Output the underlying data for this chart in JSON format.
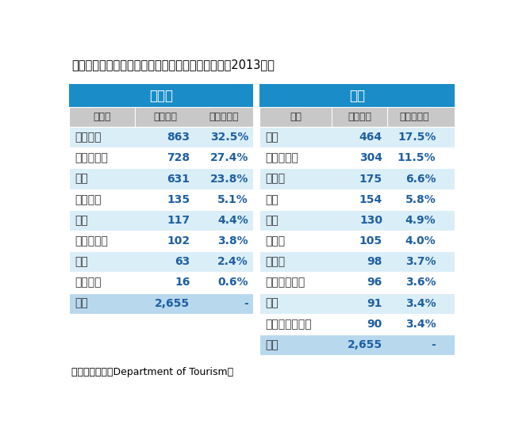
{
  "title": "図表２　タイの観光客到着数の地域別・国別内訳（2013年）",
  "source": "出所：観光局（Department of Tourism）",
  "header_bg": "#1a8dc8",
  "header_text": "#ffffff",
  "subheader_bg": "#c8c8c8",
  "subheader_text": "#333333",
  "row_bg_even": "#daeef8",
  "row_bg_odd": "#ffffff",
  "last_row_bg": "#b8d8ee",
  "data_text_color": "#1e5fa0",
  "name_text_color": "#333333",
  "left_table": {
    "title": "地域別",
    "headers": [
      "地域名",
      "（万人）",
      "（構成比）"
    ],
    "rows": [
      [
        "東アジア",
        "863",
        "32.5%"
      ],
      [
        "東南アジア",
        "728",
        "27.4%"
      ],
      [
        "欧州",
        "631",
        "23.8%"
      ],
      [
        "南アジア",
        "135",
        "5.1%"
      ],
      [
        "米州",
        "117",
        "4.4%"
      ],
      [
        "オセアニア",
        "102",
        "3.8%"
      ],
      [
        "中東",
        "63",
        "2.4%"
      ],
      [
        "アフリカ",
        "16",
        "0.6%"
      ],
      [
        "全体",
        "2,655",
        "-"
      ]
    ]
  },
  "right_table": {
    "title": "国別",
    "headers": [
      "国名",
      "（万人）",
      "（構成比）"
    ],
    "rows": [
      [
        "中国",
        "464",
        "17.5%"
      ],
      [
        "マレーシア",
        "304",
        "11.5%"
      ],
      [
        "ロシア",
        "175",
        "6.6%"
      ],
      [
        "日本",
        "154",
        "5.8%"
      ],
      [
        "韓国",
        "130",
        "4.9%"
      ],
      [
        "インド",
        "105",
        "4.0%"
      ],
      [
        "ラオス",
        "98",
        "3.7%"
      ],
      [
        "シンガポール",
        "96",
        "3.6%"
      ],
      [
        "英国",
        "91",
        "3.4%"
      ],
      [
        "オーストラリア",
        "90",
        "3.4%"
      ],
      [
        "全体",
        "2,655",
        "-"
      ]
    ]
  }
}
